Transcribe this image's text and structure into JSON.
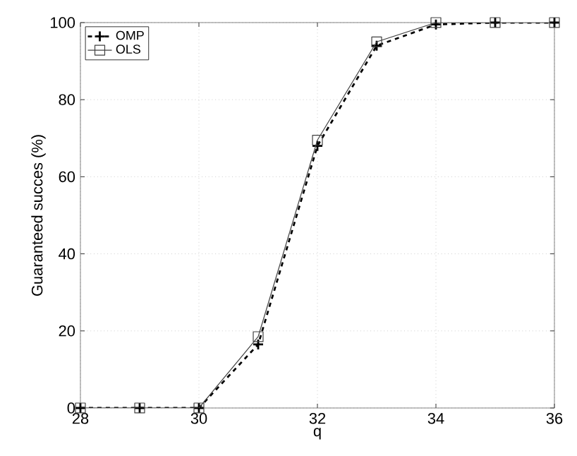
{
  "chart_data": {
    "type": "line",
    "xlabel": "q",
    "ylabel": "Guaranteed succes (%)",
    "x": [
      28,
      29,
      30,
      31,
      32,
      33,
      34,
      35,
      36
    ],
    "series": [
      {
        "name": "OMP",
        "color": "#000000",
        "marker": "cross",
        "line_style": "dashed",
        "values": [
          0,
          0,
          0,
          16.5,
          68,
          94,
          99.5,
          100,
          100
        ]
      },
      {
        "name": "OLS",
        "color": "#404040",
        "marker": "square",
        "line_style": "solid",
        "values": [
          0,
          0,
          0,
          18.5,
          69.5,
          95,
          100,
          100,
          100
        ]
      }
    ],
    "xlim": [
      28,
      36
    ],
    "xticks": [
      28,
      30,
      32,
      34,
      36
    ],
    "ylim": [
      0,
      100
    ],
    "yticks": [
      0,
      20,
      40,
      60,
      80,
      100
    ],
    "grid": true,
    "legend": "top left"
  }
}
